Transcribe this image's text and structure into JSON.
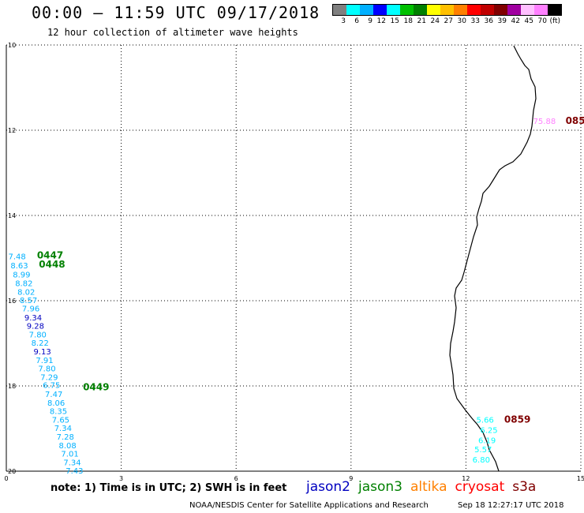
{
  "header": {
    "title": "00:00 – 11:59 UTC 09/17/2018",
    "subtitle": "12 hour collection of altimeter wave heights"
  },
  "colorbar": {
    "colors": [
      "#808080",
      "#00ffff",
      "#00b0ff",
      "#0000ff",
      "#00ffff",
      "#00c000",
      "#008000",
      "#ffff00",
      "#ffc000",
      "#ff8000",
      "#ff0000",
      "#c00000",
      "#800000",
      "#a000a0",
      "#ffc0ff",
      "#ff80ff",
      "#000000"
    ],
    "labels": [
      "3",
      "6",
      "9",
      "12",
      "15",
      "18",
      "21",
      "24",
      "27",
      "30",
      "33",
      "36",
      "39",
      "42",
      "45",
      "70",
      "(ft)"
    ]
  },
  "axes": {
    "x_ticks": [
      "0",
      "3",
      "6",
      "9",
      "12",
      "15"
    ],
    "y_ticks": [
      "10",
      "12",
      "14",
      "16",
      "18",
      "20"
    ]
  },
  "chart_data": {
    "type": "scatter",
    "title": "00:00 – 11:59 UTC 09/17/2018",
    "xlim": [
      0,
      15
    ],
    "ylim": [
      10,
      20
    ],
    "pass_labels": [
      {
        "text": "0447",
        "x": 0.8,
        "y": 15.01,
        "color": "#008000"
      },
      {
        "text": "0448",
        "x": 0.85,
        "y": 15.22,
        "color": "#008000"
      },
      {
        "text": "0449",
        "x": 2.0,
        "y": 18.1,
        "color": "#008000"
      },
      {
        "text": "0859",
        "x": 13.0,
        "y": 18.86,
        "color": "#800000"
      },
      {
        "text": "085",
        "x": 14.6,
        "y": 11.85,
        "color": "#800000"
      }
    ],
    "values": [
      {
        "t": "7.48",
        "x": 0.28,
        "y": 15.03,
        "c": "#00b0ff"
      },
      {
        "t": "8.63",
        "x": 0.34,
        "y": 15.24,
        "c": "#00b0ff"
      },
      {
        "t": "8.99",
        "x": 0.4,
        "y": 15.45,
        "c": "#00b0ff"
      },
      {
        "t": "8.82",
        "x": 0.46,
        "y": 15.66,
        "c": "#00b0ff"
      },
      {
        "t": "8.02",
        "x": 0.52,
        "y": 15.86,
        "c": "#00b0ff"
      },
      {
        "t": "8.57",
        "x": 0.58,
        "y": 16.06,
        "c": "#00b0ff"
      },
      {
        "t": "7.96",
        "x": 0.64,
        "y": 16.25,
        "c": "#00b0ff"
      },
      {
        "t": "9.34",
        "x": 0.7,
        "y": 16.46,
        "c": "#0000c0"
      },
      {
        "t": "9.28",
        "x": 0.76,
        "y": 16.66,
        "c": "#0000c0"
      },
      {
        "t": "7.80",
        "x": 0.82,
        "y": 16.86,
        "c": "#00b0ff"
      },
      {
        "t": "8.22",
        "x": 0.88,
        "y": 17.06,
        "c": "#00b0ff"
      },
      {
        "t": "9.13",
        "x": 0.94,
        "y": 17.26,
        "c": "#0000c0"
      },
      {
        "t": "7.91",
        "x": 1.0,
        "y": 17.46,
        "c": "#00b0ff"
      },
      {
        "t": "7.80",
        "x": 1.06,
        "y": 17.66,
        "c": "#00b0ff"
      },
      {
        "t": "7.29",
        "x": 1.12,
        "y": 17.86,
        "c": "#00b0ff"
      },
      {
        "t": "6.75",
        "x": 1.18,
        "y": 18.05,
        "c": "#00b0ff"
      },
      {
        "t": "7.47",
        "x": 1.24,
        "y": 18.26,
        "c": "#00b0ff"
      },
      {
        "t": "8.06",
        "x": 1.3,
        "y": 18.46,
        "c": "#00b0ff"
      },
      {
        "t": "8.35",
        "x": 1.36,
        "y": 18.66,
        "c": "#00b0ff"
      },
      {
        "t": "7.65",
        "x": 1.42,
        "y": 18.86,
        "c": "#00b0ff"
      },
      {
        "t": "7.34",
        "x": 1.48,
        "y": 19.06,
        "c": "#00b0ff"
      },
      {
        "t": "7.28",
        "x": 1.54,
        "y": 19.26,
        "c": "#00b0ff"
      },
      {
        "t": "8.08",
        "x": 1.6,
        "y": 19.46,
        "c": "#00b0ff"
      },
      {
        "t": "7.01",
        "x": 1.66,
        "y": 19.66,
        "c": "#00b0ff"
      },
      {
        "t": "7.34",
        "x": 1.72,
        "y": 19.86,
        "c": "#00b0ff"
      },
      {
        "t": "7.43",
        "x": 1.78,
        "y": 20.06,
        "c": "#00b0ff"
      },
      {
        "t": "75.88",
        "x": 14.05,
        "y": 11.85,
        "c": "#ff80ff"
      },
      {
        "t": "5.66",
        "x": 12.5,
        "y": 18.86,
        "c": "#00ffff"
      },
      {
        "t": "6.25",
        "x": 12.6,
        "y": 19.1,
        "c": "#00ffff"
      },
      {
        "t": "6.19",
        "x": 12.55,
        "y": 19.34,
        "c": "#00ffff"
      },
      {
        "t": "5.57",
        "x": 12.45,
        "y": 19.56,
        "c": "#00ffff"
      },
      {
        "t": "6.80",
        "x": 12.4,
        "y": 19.8,
        "c": "#00ffff"
      }
    ]
  },
  "footer": {
    "note": "note: 1) Time is in UTC; 2) SWH is in feet",
    "credit": "NOAA/NESDIS Center for Satellite Applications and Research",
    "timestamp": "Sep 18 12:27:17 UTC 2018"
  },
  "legend": [
    {
      "name": "jason2",
      "color": "#0000c0"
    },
    {
      "name": "jason3",
      "color": "#008000"
    },
    {
      "name": "altika",
      "color": "#ff8000"
    },
    {
      "name": "cryosat",
      "color": "#ff0000"
    },
    {
      "name": "s3a",
      "color": "#800000"
    }
  ]
}
